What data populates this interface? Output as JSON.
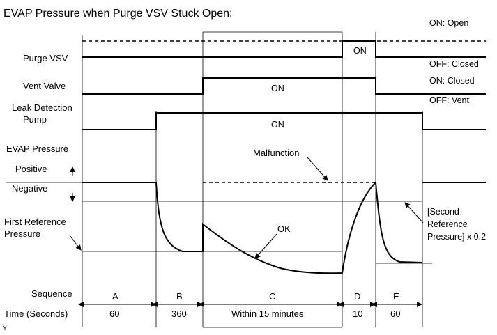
{
  "title": "EVAP Pressure when Purge VSV Stuck Open:",
  "signals": {
    "purge_vsv": {
      "label": "Purge VSV",
      "on_label": "ON",
      "legend_on": "ON: Open",
      "legend_off": "OFF: Closed"
    },
    "vent_valve": {
      "label": "Vent Valve",
      "on_label": "ON",
      "legend_on": "ON: Closed",
      "legend_off": "OFF: Vent"
    },
    "pump": {
      "label_line1": "Leak Detection",
      "label_line2": "Pump",
      "on_label": "ON"
    }
  },
  "pressure": {
    "label": "EVAP Pressure",
    "positive": "Positive",
    "negative": "Negative",
    "first_ref_line1": "First Reference",
    "first_ref_line2": "Pressure",
    "malfunction": "Malfunction",
    "ok": "OK",
    "second_ref_line1": "[Second",
    "second_ref_line2": "Reference",
    "second_ref_line3": "Pressure] x 0.2"
  },
  "sequence": {
    "label": "Sequence",
    "time_label": "Time (Seconds)",
    "steps": [
      {
        "id": "A",
        "time": "60"
      },
      {
        "id": "B",
        "time": "360"
      },
      {
        "id": "C",
        "time": "Within 15 minutes"
      },
      {
        "id": "D",
        "time": "10"
      },
      {
        "id": "E",
        "time": "60"
      }
    ]
  },
  "footnote": "Y"
}
